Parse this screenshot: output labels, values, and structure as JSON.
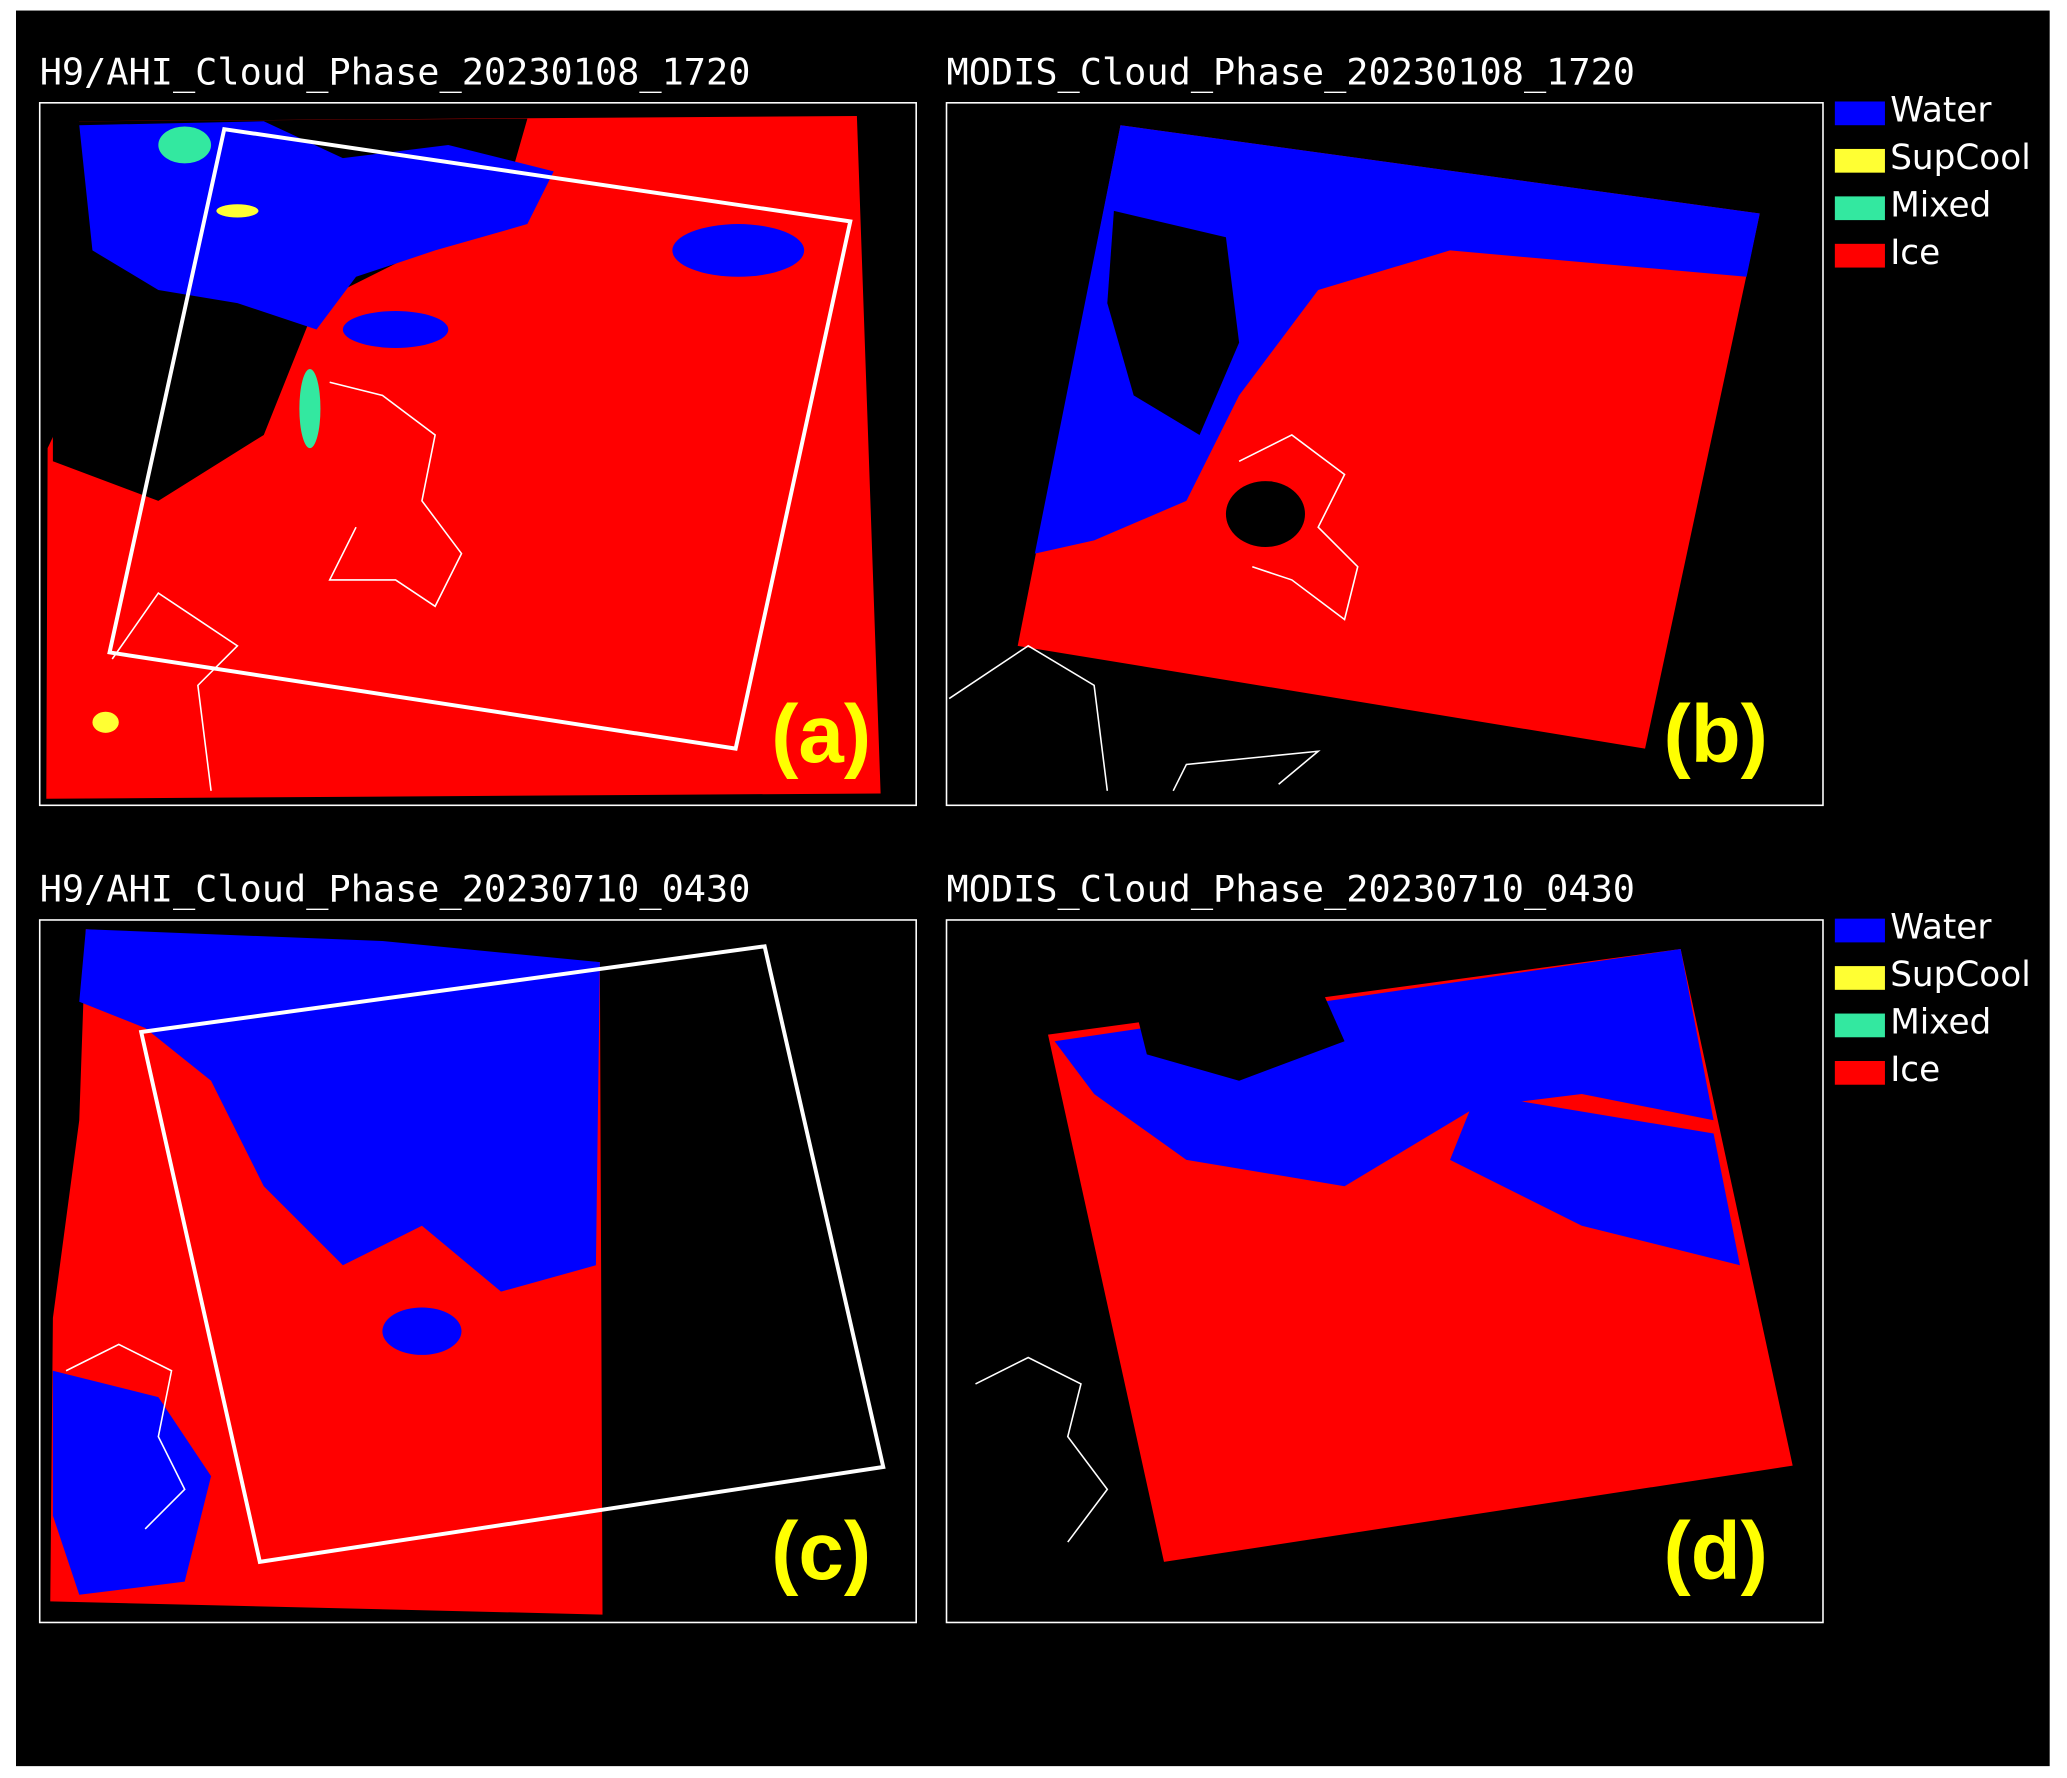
{
  "panels": [
    {
      "title": "H9/AHI_Cloud_Phase_20230108_1720",
      "label": "(a)"
    },
    {
      "title": "MODIS_Cloud_Phase_20230108_1720",
      "label": "(b)",
      "legend": [
        {
          "name": "Water",
          "color": "#0000ff"
        },
        {
          "name": "SupCool",
          "color": "#ffff33"
        },
        {
          "name": "Mixed",
          "color": "#33e8a0"
        },
        {
          "name": "Ice",
          "color": "#ff0000"
        }
      ]
    },
    {
      "title": "H9/AHI_Cloud_Phase_20230710_0430",
      "label": "(c)"
    },
    {
      "title": "MODIS_Cloud_Phase_20230710_0430",
      "label": "(d)",
      "legend": [
        {
          "name": "Water",
          "color": "#0000ff"
        },
        {
          "name": "SupCool",
          "color": "#ffff33"
        },
        {
          "name": "Mixed",
          "color": "#33e8a0"
        },
        {
          "name": "Ice",
          "color": "#ff0000"
        }
      ]
    }
  ]
}
